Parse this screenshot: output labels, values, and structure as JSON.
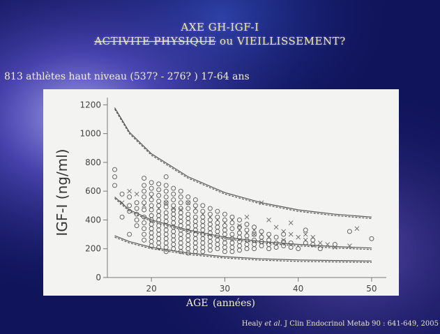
{
  "slide": {
    "title_line1": "AXE GH-IGF-I",
    "title_line2_struck": "ACTIVITE PHYSIQUE",
    "title_line2_connector": "ou",
    "title_line2_rest": "VIEILLISSEMENT?",
    "subtitle": "813 athlètes haut niveau (537?  - 276? )   17-64 ans",
    "source_author": "Healy",
    "source_etal": "et al.",
    "source_ref": "J Clin Endocrinol Metab 90 : 641-649, 2005",
    "colors": {
      "background": "#141a6a",
      "title": "#f2e9a8",
      "panel": "#f3f3f1"
    }
  },
  "chart_data": {
    "type": "scatter",
    "xlabel": "AGE",
    "xlabel_unit": "(années)",
    "ylabel": "IGF-I (ng/ml)",
    "xlim": [
      14,
      52
    ],
    "ylim": [
      0,
      1250
    ],
    "x_ticks": [
      20,
      30,
      40,
      50
    ],
    "y_ticks": [
      0,
      200,
      400,
      600,
      800,
      1000,
      1200
    ],
    "grid": false,
    "series": [
      {
        "marker": "circle",
        "points": [
          [
            15,
            750
          ],
          [
            15,
            700
          ],
          [
            15,
            640
          ],
          [
            16,
            420
          ],
          [
            16,
            580
          ],
          [
            17,
            560
          ],
          [
            17,
            500
          ],
          [
            17,
            460
          ],
          [
            17,
            300
          ],
          [
            18,
            520
          ],
          [
            18,
            480
          ],
          [
            18,
            440
          ],
          [
            18,
            400
          ],
          [
            18,
            360
          ],
          [
            19,
            690
          ],
          [
            19,
            640
          ],
          [
            19,
            600
          ],
          [
            19,
            560
          ],
          [
            19,
            520
          ],
          [
            19,
            470
          ],
          [
            19,
            420
          ],
          [
            19,
            380
          ],
          [
            19,
            340
          ],
          [
            19,
            300
          ],
          [
            19,
            260
          ],
          [
            20,
            660
          ],
          [
            20,
            620
          ],
          [
            20,
            580
          ],
          [
            20,
            540
          ],
          [
            20,
            500
          ],
          [
            20,
            470
          ],
          [
            20,
            430
          ],
          [
            20,
            400
          ],
          [
            20,
            370
          ],
          [
            20,
            340
          ],
          [
            20,
            310
          ],
          [
            20,
            280
          ],
          [
            20,
            250
          ],
          [
            20,
            220
          ],
          [
            21,
            650
          ],
          [
            21,
            610
          ],
          [
            21,
            570
          ],
          [
            21,
            530
          ],
          [
            21,
            500
          ],
          [
            21,
            460
          ],
          [
            21,
            430
          ],
          [
            21,
            400
          ],
          [
            21,
            360
          ],
          [
            21,
            330
          ],
          [
            21,
            300
          ],
          [
            21,
            270
          ],
          [
            21,
            240
          ],
          [
            21,
            210
          ],
          [
            22,
            700
          ],
          [
            22,
            640
          ],
          [
            22,
            600
          ],
          [
            22,
            560
          ],
          [
            22,
            520
          ],
          [
            22,
            490
          ],
          [
            22,
            450
          ],
          [
            22,
            420
          ],
          [
            22,
            390
          ],
          [
            22,
            360
          ],
          [
            22,
            330
          ],
          [
            22,
            300
          ],
          [
            22,
            270
          ],
          [
            22,
            240
          ],
          [
            22,
            210
          ],
          [
            22,
            180
          ],
          [
            23,
            620
          ],
          [
            23,
            580
          ],
          [
            23,
            540
          ],
          [
            23,
            500
          ],
          [
            23,
            470
          ],
          [
            23,
            440
          ],
          [
            23,
            410
          ],
          [
            23,
            380
          ],
          [
            23,
            350
          ],
          [
            23,
            320
          ],
          [
            23,
            290
          ],
          [
            23,
            260
          ],
          [
            23,
            230
          ],
          [
            23,
            200
          ],
          [
            24,
            600
          ],
          [
            24,
            560
          ],
          [
            24,
            520
          ],
          [
            24,
            480
          ],
          [
            24,
            450
          ],
          [
            24,
            420
          ],
          [
            24,
            390
          ],
          [
            24,
            360
          ],
          [
            24,
            330
          ],
          [
            24,
            300
          ],
          [
            24,
            270
          ],
          [
            24,
            240
          ],
          [
            24,
            210
          ],
          [
            24,
            180
          ],
          [
            25,
            560
          ],
          [
            25,
            520
          ],
          [
            25,
            480
          ],
          [
            25,
            440
          ],
          [
            25,
            410
          ],
          [
            25,
            380
          ],
          [
            25,
            350
          ],
          [
            25,
            320
          ],
          [
            25,
            290
          ],
          [
            25,
            260
          ],
          [
            25,
            230
          ],
          [
            25,
            200
          ],
          [
            25,
            170
          ],
          [
            26,
            540
          ],
          [
            26,
            500
          ],
          [
            26,
            460
          ],
          [
            26,
            420
          ],
          [
            26,
            390
          ],
          [
            26,
            360
          ],
          [
            26,
            330
          ],
          [
            26,
            300
          ],
          [
            26,
            270
          ],
          [
            26,
            240
          ],
          [
            26,
            210
          ],
          [
            26,
            180
          ],
          [
            27,
            500
          ],
          [
            27,
            460
          ],
          [
            27,
            420
          ],
          [
            27,
            390
          ],
          [
            27,
            360
          ],
          [
            27,
            330
          ],
          [
            27,
            300
          ],
          [
            27,
            270
          ],
          [
            27,
            240
          ],
          [
            27,
            210
          ],
          [
            27,
            180
          ],
          [
            28,
            480
          ],
          [
            28,
            440
          ],
          [
            28,
            400
          ],
          [
            28,
            370
          ],
          [
            28,
            340
          ],
          [
            28,
            310
          ],
          [
            28,
            280
          ],
          [
            28,
            250
          ],
          [
            28,
            220
          ],
          [
            28,
            190
          ],
          [
            29,
            460
          ],
          [
            29,
            420
          ],
          [
            29,
            380
          ],
          [
            29,
            350
          ],
          [
            29,
            320
          ],
          [
            29,
            290
          ],
          [
            29,
            260
          ],
          [
            29,
            230
          ],
          [
            29,
            200
          ],
          [
            30,
            440
          ],
          [
            30,
            400
          ],
          [
            30,
            360
          ],
          [
            30,
            330
          ],
          [
            30,
            300
          ],
          [
            30,
            270
          ],
          [
            30,
            240
          ],
          [
            30,
            210
          ],
          [
            30,
            180
          ],
          [
            31,
            420
          ],
          [
            31,
            380
          ],
          [
            31,
            340
          ],
          [
            31,
            300
          ],
          [
            31,
            270
          ],
          [
            31,
            240
          ],
          [
            31,
            210
          ],
          [
            31,
            180
          ],
          [
            32,
            400
          ],
          [
            32,
            350
          ],
          [
            32,
            310
          ],
          [
            32,
            280
          ],
          [
            32,
            250
          ],
          [
            32,
            220
          ],
          [
            32,
            190
          ],
          [
            33,
            370
          ],
          [
            33,
            330
          ],
          [
            33,
            290
          ],
          [
            33,
            260
          ],
          [
            33,
            230
          ],
          [
            33,
            200
          ],
          [
            34,
            350
          ],
          [
            34,
            300
          ],
          [
            34,
            260
          ],
          [
            34,
            230
          ],
          [
            34,
            200
          ],
          [
            35,
            320
          ],
          [
            35,
            280
          ],
          [
            35,
            250
          ],
          [
            35,
            220
          ],
          [
            36,
            300
          ],
          [
            36,
            260
          ],
          [
            36,
            230
          ],
          [
            36,
            200
          ],
          [
            37,
            280
          ],
          [
            37,
            240
          ],
          [
            37,
            210
          ],
          [
            38,
            300
          ],
          [
            38,
            250
          ],
          [
            38,
            220
          ],
          [
            39,
            240
          ],
          [
            39,
            210
          ],
          [
            40,
            200
          ],
          [
            41,
            330
          ],
          [
            41,
            240
          ],
          [
            42,
            260
          ],
          [
            42,
            230
          ],
          [
            43,
            200
          ],
          [
            45,
            230
          ],
          [
            47,
            320
          ],
          [
            50,
            270
          ]
        ]
      },
      {
        "marker": "cross",
        "points": [
          [
            16,
            520
          ],
          [
            17,
            600
          ],
          [
            18,
            580
          ],
          [
            19,
            500
          ],
          [
            20,
            560
          ],
          [
            21,
            480
          ],
          [
            22,
            520
          ],
          [
            23,
            480
          ],
          [
            24,
            470
          ],
          [
            25,
            520
          ],
          [
            26,
            480
          ],
          [
            27,
            440
          ],
          [
            28,
            420
          ],
          [
            29,
            400
          ],
          [
            30,
            380
          ],
          [
            31,
            400
          ],
          [
            32,
            360
          ],
          [
            33,
            420
          ],
          [
            34,
            330
          ],
          [
            35,
            300
          ],
          [
            36,
            400
          ],
          [
            37,
            350
          ],
          [
            38,
            320
          ],
          [
            39,
            300
          ],
          [
            40,
            280
          ],
          [
            41,
            260
          ],
          [
            42,
            280
          ],
          [
            43,
            240
          ],
          [
            44,
            230
          ],
          [
            45,
            210
          ],
          [
            35,
            520
          ],
          [
            34,
            300
          ],
          [
            36,
            280
          ],
          [
            33,
            310
          ],
          [
            32,
            330
          ],
          [
            38,
            260
          ],
          [
            39,
            380
          ],
          [
            41,
            300
          ],
          [
            47,
            220
          ],
          [
            48,
            340
          ]
        ]
      }
    ],
    "reference_curves": {
      "x": [
        15,
        17,
        20,
        25,
        30,
        35,
        40,
        45,
        50
      ],
      "upper_solid": [
        1180,
        1010,
        860,
        700,
        590,
        520,
        470,
        440,
        420
      ],
      "upper_dashed": [
        1170,
        1000,
        850,
        690,
        580,
        510,
        460,
        430,
        410
      ],
      "mid_solid": [
        560,
        470,
        400,
        330,
        280,
        250,
        230,
        215,
        205
      ],
      "mid_dashed": [
        550,
        460,
        390,
        320,
        270,
        240,
        220,
        205,
        195
      ],
      "lower_solid": [
        290,
        250,
        210,
        170,
        145,
        130,
        122,
        118,
        115
      ],
      "lower_dashed": [
        280,
        240,
        200,
        160,
        135,
        120,
        112,
        108,
        105
      ]
    }
  }
}
